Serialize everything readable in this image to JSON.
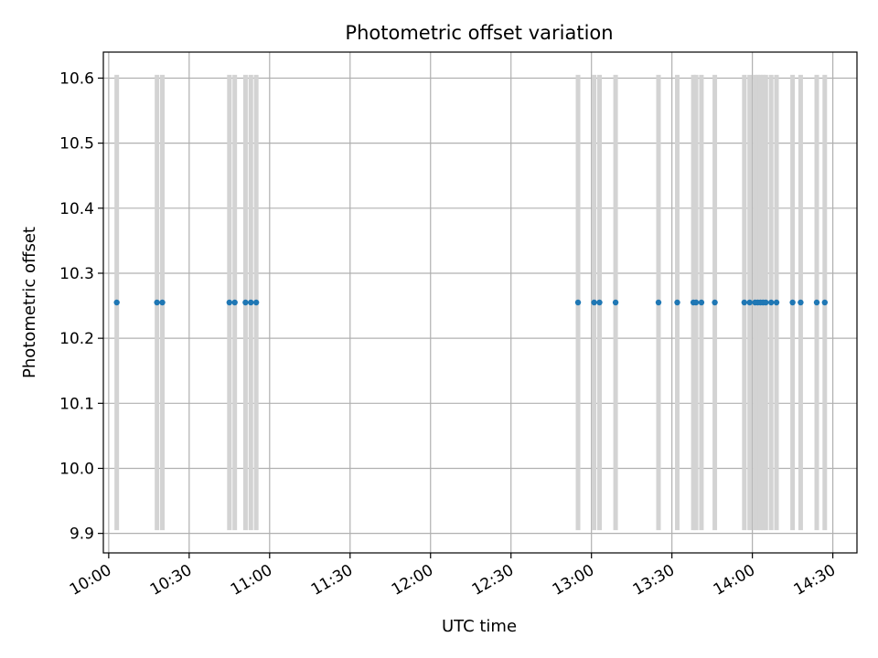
{
  "chart_data": {
    "type": "scatter",
    "title": "Photometric offset variation",
    "xlabel": "UTC time",
    "ylabel": "Photometric offset",
    "xlim": [
      "09:58",
      "14:39"
    ],
    "ylim": [
      9.87,
      10.64
    ],
    "yticks": [
      9.9,
      10.0,
      10.1,
      10.2,
      10.3,
      10.4,
      10.5,
      10.6
    ],
    "ytick_labels": [
      "9.9",
      "10.0",
      "10.1",
      "10.2",
      "10.3",
      "10.4",
      "10.5",
      "10.6"
    ],
    "xticks": [
      "10:00",
      "10:30",
      "11:00",
      "11:30",
      "12:00",
      "12:30",
      "13:00",
      "13:30",
      "14:00",
      "14:30"
    ],
    "grid": true,
    "colors": {
      "points": "#1f77b4",
      "errorbars": "#d3d3d3",
      "grid": "#b0b0b0"
    },
    "errorbar_range": [
      9.905,
      10.605
    ],
    "x": [
      "10:03",
      "10:18",
      "10:20",
      "10:45",
      "10:47",
      "10:51",
      "10:53",
      "10:55",
      "12:55",
      "13:01",
      "13:03",
      "13:09",
      "13:25",
      "13:32",
      "13:38",
      "13:39",
      "13:41",
      "13:46",
      "13:57",
      "13:59",
      "14:01",
      "14:02",
      "14:03",
      "14:04",
      "14:05",
      "14:07",
      "14:09",
      "14:15",
      "14:18",
      "14:24",
      "14:27"
    ],
    "y": [
      10.255,
      10.255,
      10.255,
      10.255,
      10.255,
      10.255,
      10.255,
      10.255,
      10.255,
      10.255,
      10.255,
      10.255,
      10.255,
      10.255,
      10.255,
      10.255,
      10.255,
      10.255,
      10.255,
      10.255,
      10.255,
      10.255,
      10.255,
      10.255,
      10.255,
      10.255,
      10.255,
      10.255,
      10.255,
      10.255,
      10.255
    ]
  }
}
